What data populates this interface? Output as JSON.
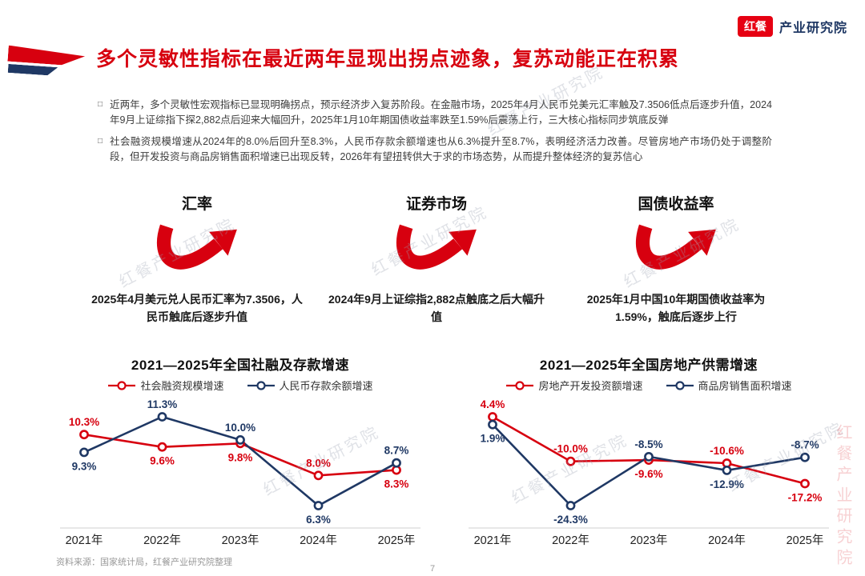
{
  "title": "多个灵敏性指标在最近两年显现出拐点迹象，复苏动能正在积累",
  "logo": {
    "badge": "红餐",
    "name": "产业研究院"
  },
  "bullet_marker": "□",
  "bullets": [
    "近两年，多个灵敏性宏观指标已显现明确拐点，预示经济步入复苏阶段。在金融市场，2025年4月人民币兑美元汇率触及7.3506低点后逐步升值，2024年9月上证综指下探2,882点后迎来大幅回升，2025年1月10年期国债收益率跌至1.59%后震荡上行，三大核心指标同步筑底反弹",
    "社会融资规模增速从2024年的8.0%后回升至8.3%，人民币存款余额增速也从6.3%提升至8.7%，表明经济活力改善。尽管房地产市场仍处于调整阶段，但开发投资与商品房销售面积增速已出现反转，2026年有望扭转供大于求的市场态势，从而提升整体经济的复苏信心"
  ],
  "indicators": [
    {
      "title": "汇率",
      "caption": "2025年4月美元兑人民币汇率为7.3506，人民币触底后逐步升值"
    },
    {
      "title": "证券市场",
      "caption": "2024年9月上证综指2,882点触底之后大幅升值"
    },
    {
      "title": "国债收益率",
      "caption": "2025年1月中国10年期国债收益率为1.59%，触底后逐步上行"
    }
  ],
  "chart_data": [
    {
      "type": "line",
      "title": "2021—2025年全国社融及存款增速",
      "categories": [
        "2021年",
        "2022年",
        "2023年",
        "2024年",
        "2025年"
      ],
      "series": [
        {
          "name": "社会融资规模增速",
          "color": "#d7000f",
          "values": [
            10.3,
            9.6,
            9.8,
            8.0,
            8.3
          ]
        },
        {
          "name": "人民币存款余额增速",
          "color": "#1f3864",
          "values": [
            9.3,
            11.3,
            10.0,
            6.3,
            8.7
          ]
        }
      ],
      "value_suffix": "%",
      "legend_position": "top",
      "grid": false,
      "ylim": [
        6,
        12
      ]
    },
    {
      "type": "line",
      "title": "2021—2025年全国房地产供需增速",
      "categories": [
        "2021年",
        "2022年",
        "2023年",
        "2024年",
        "2025年"
      ],
      "series": [
        {
          "name": "房地产开发投资额增速",
          "color": "#d7000f",
          "values": [
            4.4,
            -10.0,
            -9.6,
            -10.6,
            -17.2
          ]
        },
        {
          "name": "商品房销售面积增速",
          "color": "#1f3864",
          "values": [
            1.9,
            -24.3,
            -8.5,
            -12.9,
            -8.7
          ]
        }
      ],
      "value_suffix": "%",
      "legend_position": "top",
      "grid": false,
      "ylim": [
        -25,
        5
      ]
    }
  ],
  "watermark": {
    "text": "红餐产业研究院"
  },
  "page": {
    "number": "7",
    "source": "资料来源：国家统计局，红餐产业研究院整理"
  },
  "colors": {
    "brand_red": "#d7000f",
    "navy": "#1f3864",
    "gray_text": "#999999"
  }
}
